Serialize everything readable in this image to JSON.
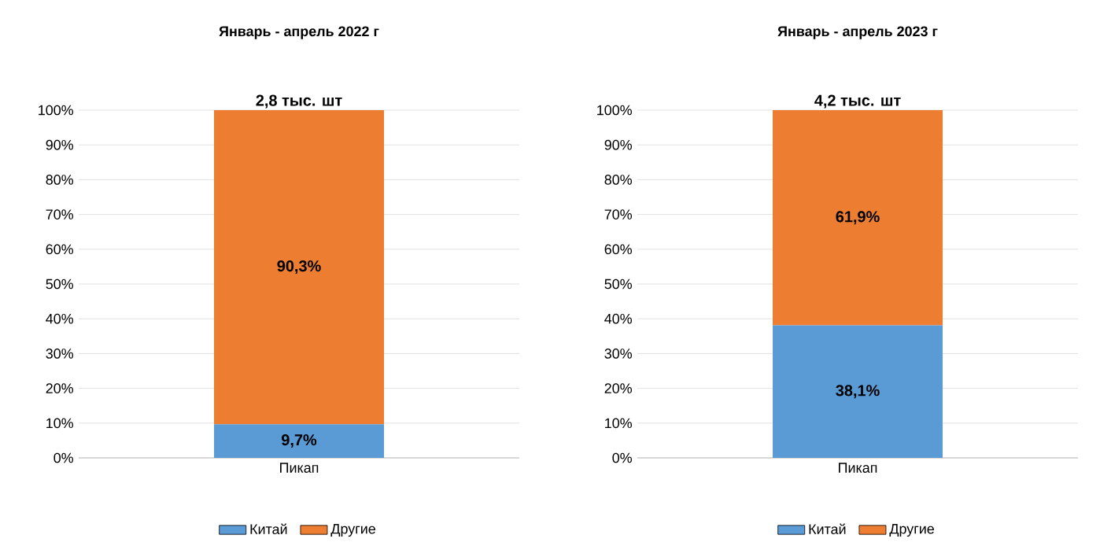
{
  "chart_data": [
    {
      "type": "bar",
      "stacked": true,
      "title": "Январь - апрель 2022 г",
      "categories": [
        "Пикап"
      ],
      "series": [
        {
          "name": "Китай",
          "color": "#5b9bd5",
          "values": [
            9.7
          ],
          "value_labels": [
            "9,7%"
          ]
        },
        {
          "name": "Другие",
          "color": "#ed7d31",
          "values": [
            90.3
          ],
          "value_labels": [
            "90,3%"
          ]
        }
      ],
      "annotations": [
        {
          "text": "2,8 тыс. шт",
          "x": "Пикап",
          "y": 100
        }
      ],
      "ylim": [
        0,
        100
      ],
      "yticks": [
        {
          "value": 0,
          "label": "0%"
        },
        {
          "value": 10,
          "label": "10%"
        },
        {
          "value": 20,
          "label": "20%"
        },
        {
          "value": 30,
          "label": "30%"
        },
        {
          "value": 40,
          "label": "40%"
        },
        {
          "value": 50,
          "label": "50%"
        },
        {
          "value": 60,
          "label": "60%"
        },
        {
          "value": 70,
          "label": "70%"
        },
        {
          "value": 80,
          "label": "80%"
        },
        {
          "value": 90,
          "label": "90%"
        },
        {
          "value": 100,
          "label": "100%"
        }
      ],
      "grid": "y",
      "legend": "bottom"
    },
    {
      "type": "bar",
      "stacked": true,
      "title": "Январь - апрель 2023 г",
      "categories": [
        "Пикап"
      ],
      "series": [
        {
          "name": "Китай",
          "color": "#5b9bd5",
          "values": [
            38.1
          ],
          "value_labels": [
            "38,1%"
          ]
        },
        {
          "name": "Другие",
          "color": "#ed7d31",
          "values": [
            61.9
          ],
          "value_labels": [
            "61,9%"
          ]
        }
      ],
      "annotations": [
        {
          "text": "4,2 тыс. шт",
          "x": "Пикап",
          "y": 100
        }
      ],
      "ylim": [
        0,
        100
      ],
      "yticks": [
        {
          "value": 0,
          "label": "0%"
        },
        {
          "value": 10,
          "label": "10%"
        },
        {
          "value": 20,
          "label": "20%"
        },
        {
          "value": 30,
          "label": "30%"
        },
        {
          "value": 40,
          "label": "40%"
        },
        {
          "value": 50,
          "label": "50%"
        },
        {
          "value": 60,
          "label": "60%"
        },
        {
          "value": 70,
          "label": "70%"
        },
        {
          "value": 80,
          "label": "80%"
        },
        {
          "value": 90,
          "label": "90%"
        },
        {
          "value": 100,
          "label": "100%"
        }
      ],
      "grid": "y",
      "legend": "bottom"
    }
  ]
}
